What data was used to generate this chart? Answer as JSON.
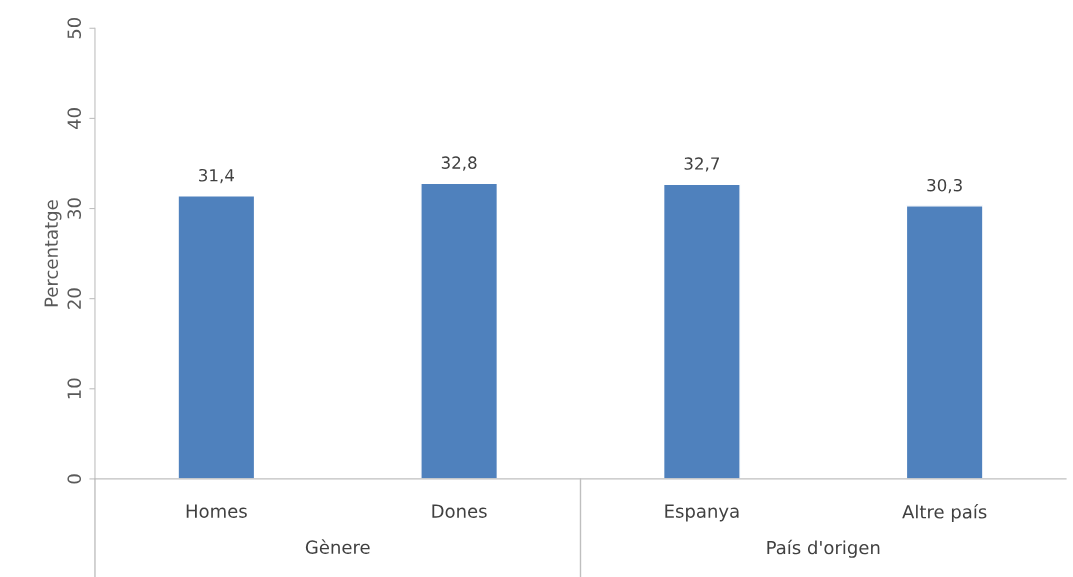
{
  "chart_data": {
    "type": "bar",
    "ylabel": "Percentatge",
    "categories": [
      "Homes",
      "Dones",
      "Espanya",
      "Altre país"
    ],
    "values": [
      31.4,
      32.8,
      32.7,
      30.3
    ],
    "value_labels": [
      "31,4",
      "32,8",
      "32,7",
      "30,3"
    ],
    "color": "#4f81bd",
    "ylim": [
      0,
      50
    ],
    "yticks": [
      0,
      10,
      20,
      30,
      40,
      50
    ],
    "annotations": [
      "Gènere",
      "País d'origen"
    ]
  }
}
